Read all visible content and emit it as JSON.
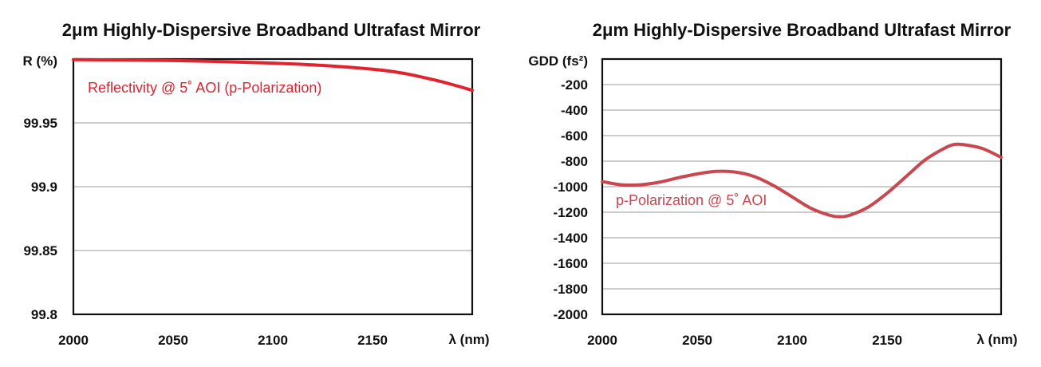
{
  "chart_data": [
    {
      "type": "line",
      "title": "2μm Highly-Dispersive Broadband Ultrafast Mirror",
      "xlabel": "λ (nm)",
      "ylabel": "R (%)",
      "xlim": [
        2000,
        2200
      ],
      "ylim": [
        99.8,
        100.0
      ],
      "x_ticks": [
        "2000",
        "2050",
        "2100",
        "2150"
      ],
      "y_ticks": [
        "99.8",
        "99.85",
        "99.9",
        "99.95"
      ],
      "grid": true,
      "series": [
        {
          "name": "Reflectivity @ 5˚ AOI (p-Polarization)",
          "color": "#e2232e",
          "x": [
            2000,
            2025,
            2050,
            2075,
            2100,
            2125,
            2150,
            2165,
            2180,
            2190,
            2200
          ],
          "y": [
            99.9995,
            99.9993,
            99.9988,
            99.998,
            99.9968,
            99.995,
            99.992,
            99.989,
            99.984,
            99.98,
            99.9755
          ]
        }
      ]
    },
    {
      "type": "line",
      "title": "2μm Highly-Dispersive Broadband Ultrafast Mirror",
      "xlabel": "λ (nm)",
      "ylabel": "GDD (fs²)",
      "xlim": [
        2000,
        2210
      ],
      "ylim": [
        -2000,
        0
      ],
      "x_ticks": [
        "2000",
        "2050",
        "2100",
        "2150"
      ],
      "y_ticks": [
        "-200",
        "-400",
        "-600",
        "-800",
        "-1000",
        "-1200",
        "-1400",
        "-1600",
        "-1800",
        "-2000"
      ],
      "grid": true,
      "series": [
        {
          "name": "p-Polarization @ 5˚ AOI",
          "color": "#c9474f",
          "x": [
            2000,
            2010,
            2020,
            2030,
            2040,
            2050,
            2060,
            2070,
            2080,
            2090,
            2100,
            2110,
            2120,
            2125,
            2130,
            2140,
            2150,
            2160,
            2170,
            2180,
            2185,
            2190,
            2200,
            2210
          ],
          "y": [
            -960,
            -985,
            -985,
            -965,
            -930,
            -900,
            -880,
            -885,
            -920,
            -990,
            -1080,
            -1170,
            -1225,
            -1235,
            -1225,
            -1160,
            -1050,
            -920,
            -790,
            -700,
            -670,
            -670,
            -700,
            -770
          ]
        }
      ]
    }
  ]
}
